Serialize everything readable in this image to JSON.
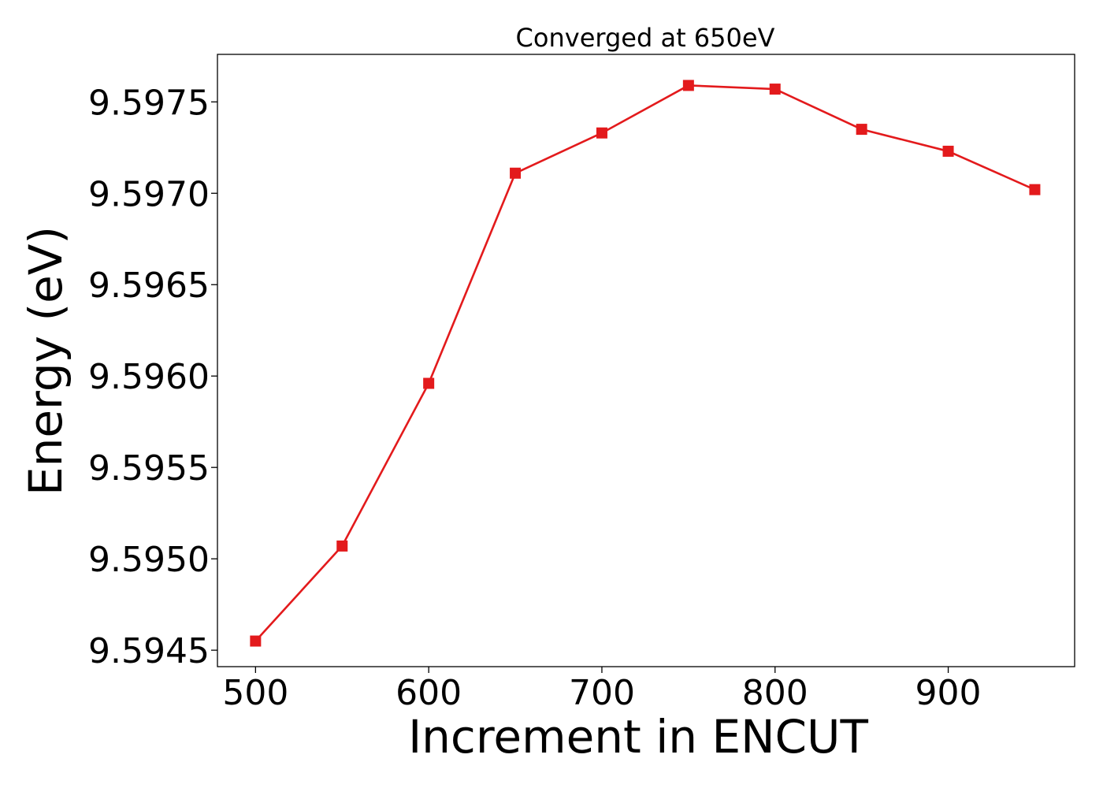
{
  "chart_data": {
    "type": "line",
    "title": "Converged at 650eV",
    "xlabel": "Increment in ENCUT",
    "ylabel": "Energy (eV)",
    "x": [
      500,
      550,
      600,
      650,
      700,
      750,
      800,
      850,
      900,
      950
    ],
    "series": [
      {
        "values": [
          9.59455,
          9.59507,
          9.59596,
          9.59711,
          9.59733,
          9.59759,
          9.59757,
          9.59735,
          9.59723,
          9.59702
        ],
        "color": "#e31a1c",
        "marker": "square"
      }
    ],
    "xlim": [
      478,
      973
    ],
    "ylim": [
      9.59441,
      9.59776
    ],
    "xticks": [
      500,
      600,
      700,
      800,
      900
    ],
    "xtick_labels": [
      "500",
      "600",
      "700",
      "800",
      "900"
    ],
    "yticks": [
      9.5945,
      9.595,
      9.5955,
      9.596,
      9.5965,
      9.597,
      9.5975
    ],
    "ytick_labels": [
      "9.5945",
      "9.5950",
      "9.5955",
      "9.5960",
      "9.5965",
      "9.5970",
      "9.5975"
    ],
    "grid": false,
    "legend": "none"
  }
}
